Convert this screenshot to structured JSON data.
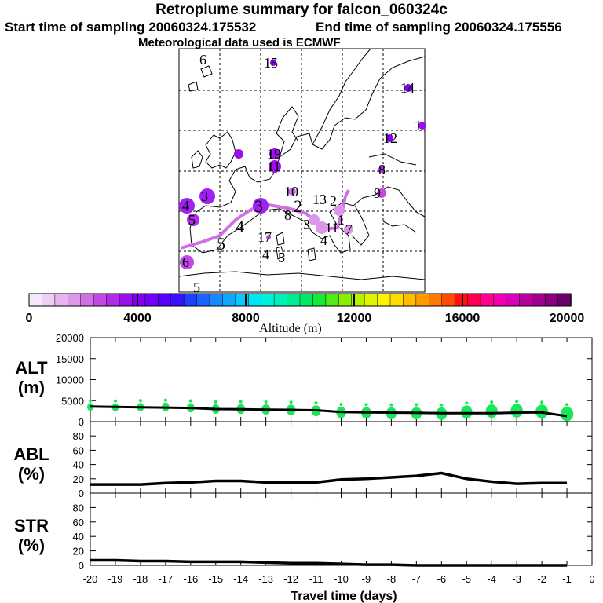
{
  "header": {
    "title": "Retroplume summary for falcon_060324c",
    "start_label": "Start time of sampling 20060324.175532",
    "end_label": "End time of sampling 20060324.175556",
    "met_label": "Meteorological data used is ECMWF"
  },
  "colorbar": {
    "label": "Altitude (m)",
    "tick_labels": [
      "0",
      "4000",
      "8000",
      "12000",
      "16000",
      "20000"
    ],
    "min": 0,
    "max": 20000,
    "colors": [
      "#f5e6fa",
      "#eed0f5",
      "#e6b4f0",
      "#dd96ea",
      "#d070e6",
      "#c24ae4",
      "#b02ce6",
      "#9a10ea",
      "#8400f0",
      "#7200f6",
      "#5a00fa",
      "#3a10ff",
      "#2040ff",
      "#1c64ff",
      "#1888ff",
      "#10a8ff",
      "#08c8ff",
      "#00e4f8",
      "#00f0dc",
      "#00f0b8",
      "#00ec90",
      "#00e864",
      "#18e838",
      "#50ec18",
      "#88f000",
      "#b8f000",
      "#e0f400",
      "#fcf400",
      "#ffdc00",
      "#ffbc00",
      "#ff9c00",
      "#ff7800",
      "#ff4c00",
      "#ff1010",
      "#ff0050",
      "#ff0090",
      "#f000b0",
      "#d800b8",
      "#b8009c",
      "#a00090",
      "#880080",
      "#6a006a"
    ]
  },
  "map": {
    "labels": [
      {
        "text": "6",
        "kind": "plain"
      },
      {
        "text": "15",
        "kind": "plain"
      },
      {
        "text": "14",
        "kind": "plain"
      },
      {
        "text": "1",
        "kind": "plain"
      },
      {
        "text": "12",
        "kind": "plain"
      },
      {
        "text": "19",
        "kind": "plain"
      },
      {
        "text": "11",
        "kind": "plain"
      },
      {
        "text": "8",
        "kind": "plain"
      },
      {
        "text": "9",
        "kind": "plain"
      },
      {
        "text": "10",
        "kind": "plain"
      },
      {
        "text": "3",
        "kind": "plain"
      },
      {
        "text": "4",
        "kind": "plain"
      },
      {
        "text": "5",
        "kind": "plain"
      },
      {
        "text": "6",
        "kind": "plain"
      },
      {
        "text": "5",
        "kind": "plain"
      },
      {
        "text": "4",
        "kind": "plain"
      },
      {
        "text": "3",
        "kind": "plain"
      },
      {
        "text": "2",
        "kind": "plain"
      },
      {
        "text": "8",
        "kind": "plain"
      },
      {
        "text": "3",
        "kind": "plain"
      },
      {
        "text": "1",
        "kind": "plain"
      },
      {
        "text": "4",
        "kind": "plain"
      },
      {
        "text": "11",
        "kind": "plain"
      },
      {
        "text": "7",
        "kind": "plain"
      },
      {
        "text": "4",
        "kind": "plain"
      },
      {
        "text": "5",
        "kind": "plain"
      },
      {
        "text": "17",
        "kind": "plain"
      },
      {
        "text": "2",
        "kind": "plain"
      },
      {
        "text": "13",
        "kind": "plain"
      },
      {
        "text": "5",
        "kind": "plain"
      }
    ]
  },
  "chart_data": [
    {
      "type": "scatter",
      "panel": "ALT",
      "ylabel": "ALT (m)",
      "ylim": [
        0,
        20000
      ],
      "y_ticks": [
        "0",
        "5000",
        "10000",
        "15000",
        "20000"
      ],
      "x": [
        -20,
        -19,
        -18,
        -17,
        -16,
        -15,
        -14,
        -13,
        -12,
        -11,
        -10,
        -9,
        -8,
        -7,
        -6,
        -5,
        -4,
        -3,
        -2,
        -1
      ],
      "mean_line": [
        3600,
        3500,
        3400,
        3350,
        3250,
        3000,
        2950,
        2850,
        2800,
        2700,
        2300,
        2200,
        2150,
        2100,
        2000,
        2000,
        2000,
        2150,
        2200,
        1300
      ],
      "points": [
        3500,
        3400,
        3450,
        3500,
        3300,
        3000,
        3000,
        2900,
        2800,
        2600,
        2200,
        2100,
        2000,
        2000,
        1900,
        2300,
        2500,
        2600,
        2400,
        1800
      ]
    },
    {
      "type": "line",
      "panel": "ABL",
      "ylabel": "ABL (%)",
      "ylim": [
        0,
        100
      ],
      "y_ticks": [
        "0",
        "20",
        "40",
        "60",
        "80"
      ],
      "x": [
        -20,
        -19,
        -18,
        -17,
        -16,
        -15,
        -14,
        -13,
        -12,
        -11,
        -10,
        -9,
        -8,
        -7,
        -6,
        -5,
        -4,
        -3,
        -2,
        -1
      ],
      "values": [
        12,
        12,
        12,
        14,
        15,
        17,
        17,
        15,
        15,
        15,
        19,
        20,
        22,
        24,
        28,
        20,
        16,
        13,
        14,
        14
      ]
    },
    {
      "type": "line",
      "panel": "STR",
      "ylabel": "STR (%)",
      "ylim": [
        0,
        100
      ],
      "y_ticks": [
        "0",
        "20",
        "40",
        "60",
        "80"
      ],
      "x": [
        -20,
        -19,
        -18,
        -17,
        -16,
        -15,
        -14,
        -13,
        -12,
        -11,
        -10,
        -9,
        -8,
        -7,
        -6,
        -5,
        -4,
        -3,
        -2,
        -1
      ],
      "values": [
        7,
        7,
        6,
        6,
        5,
        5,
        5,
        4,
        3,
        3,
        2,
        1,
        1,
        0,
        0,
        0,
        0,
        0,
        0,
        0
      ],
      "xlabel": "Travel time (days)",
      "x_tick_labels": [
        "-20",
        "-19",
        "-18",
        "-17",
        "-16",
        "-15",
        "-14",
        "-13",
        "-12",
        "-11",
        "-10",
        "-9",
        "-8",
        "-7",
        "-6",
        "-5",
        "-4",
        "-3",
        "-2",
        "-1",
        "0"
      ]
    }
  ]
}
